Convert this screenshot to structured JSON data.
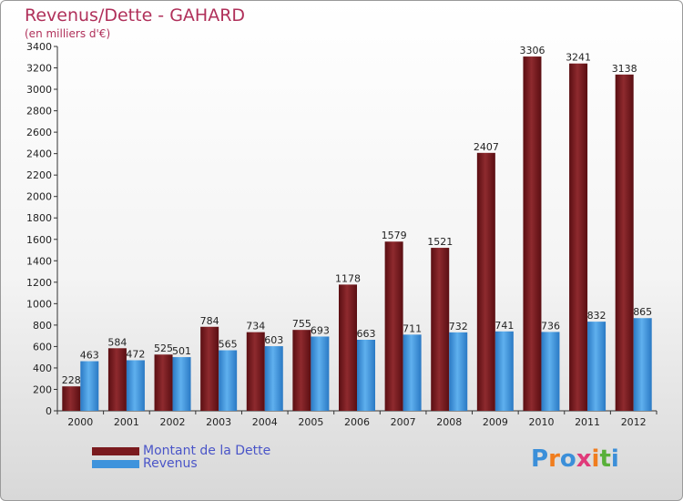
{
  "title": "Revenus/Dette - GAHARD",
  "subtitle": "(en milliers d'€)",
  "colors": {
    "dette": "#7a1a1e",
    "revenus": "#3e93dc",
    "title": "#b0305a",
    "legend_text": "#4a55c8"
  },
  "chart_data": {
    "type": "bar",
    "categories": [
      "2000",
      "2001",
      "2002",
      "2003",
      "2004",
      "2005",
      "2006",
      "2007",
      "2008",
      "2009",
      "2010",
      "2011",
      "2012"
    ],
    "series": [
      {
        "name": "Montant de la Dette",
        "values": [
          228,
          584,
          525,
          784,
          734,
          755,
          1178,
          1579,
          1521,
          2407,
          3306,
          3241,
          3138
        ]
      },
      {
        "name": "Revenus",
        "values": [
          463,
          472,
          501,
          565,
          603,
          693,
          663,
          711,
          732,
          741,
          736,
          832,
          865
        ]
      }
    ],
    "ylim": [
      0,
      3400
    ],
    "yticks": [
      0,
      200,
      400,
      600,
      800,
      1000,
      1200,
      1400,
      1600,
      1800,
      2000,
      2200,
      2400,
      2600,
      2800,
      3000,
      3200,
      3400
    ],
    "grid": false,
    "legend": "bottom-left"
  },
  "legend": [
    {
      "label": "Montant de la Dette",
      "color": "#7a1a1e"
    },
    {
      "label": "Revenus",
      "color": "#3e93dc"
    }
  ],
  "logo": {
    "letters": [
      "P",
      "r",
      "o",
      "x",
      "i",
      "t",
      "i"
    ],
    "colors": [
      "#3b8fd9",
      "#f07d1e",
      "#3b8fd9",
      "#e03a7a",
      "#f07d1e",
      "#58b03a",
      "#3b8fd9"
    ]
  }
}
